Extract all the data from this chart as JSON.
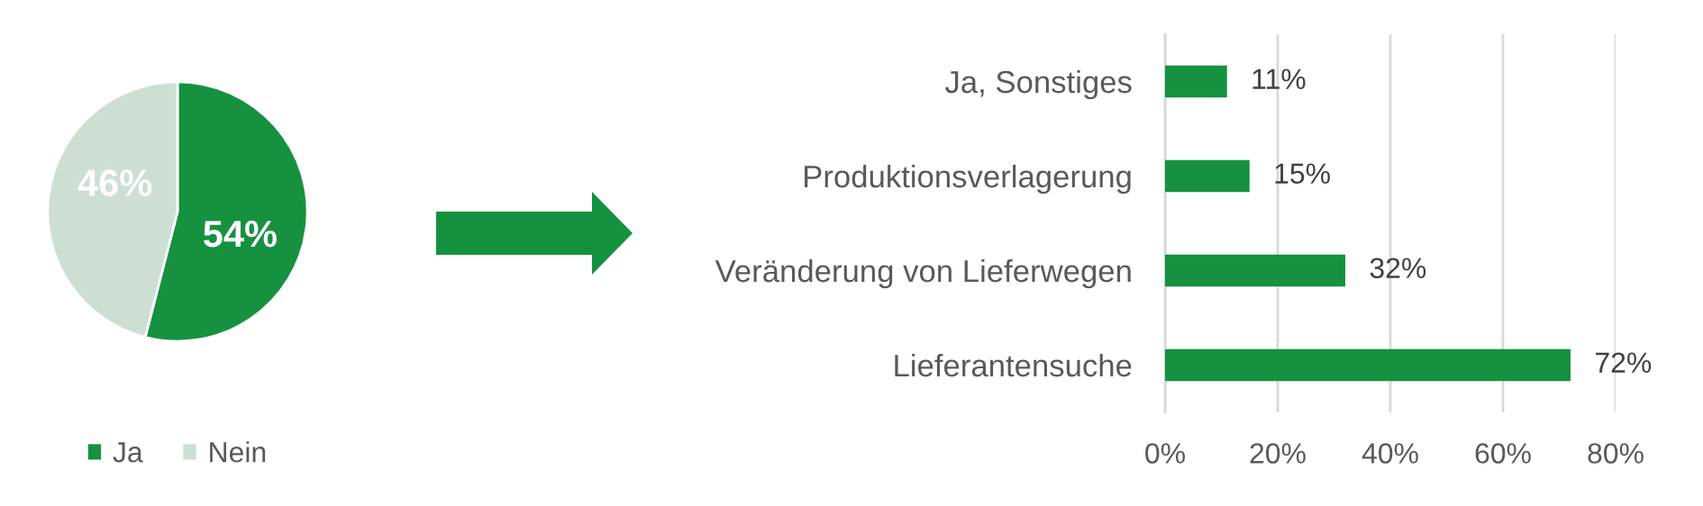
{
  "chart_data": [
    {
      "type": "pie",
      "categories": [
        "Ja",
        "Nein"
      ],
      "values": [
        54,
        46
      ],
      "colors": [
        "#16913f",
        "#cddfd2"
      ],
      "value_labels": [
        "54%",
        "46%"
      ],
      "legend": "bottom"
    },
    {
      "type": "bar",
      "orientation": "horizontal",
      "categories": [
        "Ja, Sonstiges",
        "Produktionsverlagerung",
        "Veränderung von Lieferwegen",
        "Lieferantensuche"
      ],
      "values": [
        11,
        15,
        32,
        72
      ],
      "color": "#16913f",
      "value_labels": [
        "11%",
        "15%",
        "32%",
        "72%"
      ],
      "xlim": [
        0,
        80
      ],
      "xticks": [
        {
          "value": 0,
          "label": "0%"
        },
        {
          "value": 20,
          "label": "20%"
        },
        {
          "value": 40,
          "label": "40%"
        },
        {
          "value": 60,
          "label": "60%"
        },
        {
          "value": 80,
          "label": "80%"
        }
      ],
      "grid": "x"
    }
  ]
}
